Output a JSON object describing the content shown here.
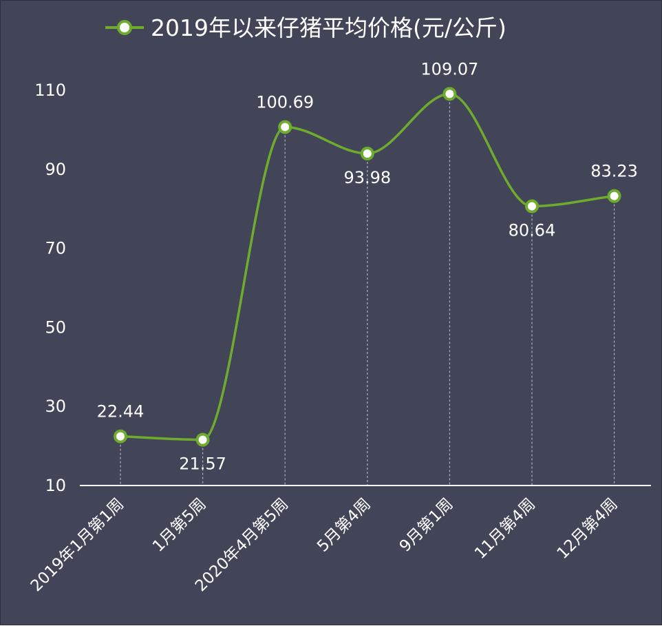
{
  "chart_data": {
    "type": "line",
    "title": "2019年以来仔猪平均价格(元/公斤)",
    "legend_placement": "top-center",
    "series": [
      {
        "name": "2019年以来仔猪平均价格(元/公斤)",
        "values": [
          22.44,
          21.57,
          100.69,
          93.98,
          109.07,
          80.64,
          83.23
        ]
      }
    ],
    "categories": [
      "2019年1月第1周",
      "1月第5周",
      "2020年4月第5周",
      "5月第4周",
      "9月第1周",
      "11月第4周",
      "12月第4周"
    ],
    "data_labels": [
      "22.44",
      "21.57",
      "100.69",
      "93.98",
      "109.07",
      "80.64",
      "83.23"
    ],
    "y_ticks": [
      "10",
      "30",
      "50",
      "70",
      "90",
      "110"
    ],
    "ylim": [
      10,
      110
    ],
    "grid": false,
    "smooth": true,
    "drop_lines": true,
    "colors": {
      "background": "#424558",
      "line": "#6fac2e",
      "marker_fill": "#ffffff",
      "text": "#ffffff",
      "axis": "#ffffff",
      "drop_line": "#a9abb6"
    }
  }
}
